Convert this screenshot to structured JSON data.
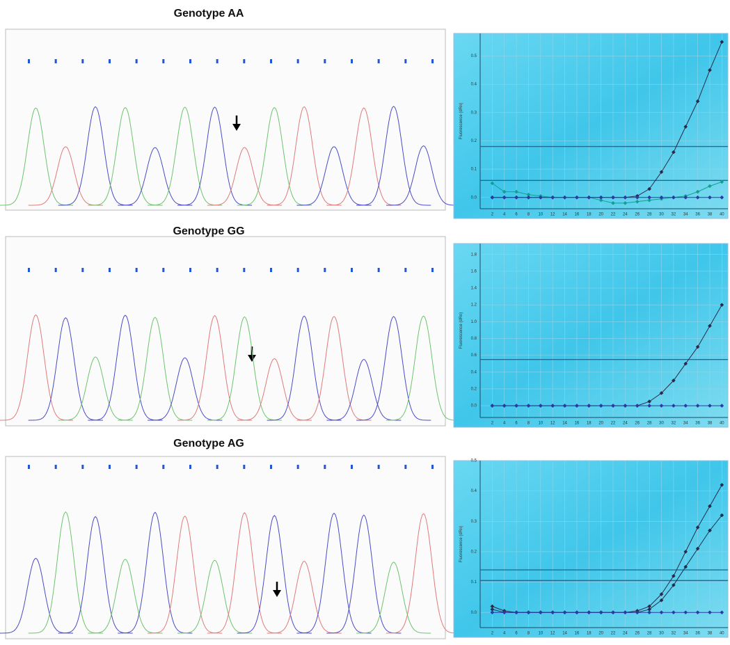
{
  "chart_data": [
    {
      "type": "line",
      "title": "Genotype AA",
      "ylabel": "Fluorescence (dRn)",
      "x": [
        2,
        4,
        6,
        8,
        10,
        12,
        14,
        16,
        18,
        20,
        22,
        24,
        26,
        28,
        30,
        32,
        34,
        36,
        38,
        40
      ],
      "xlim": [
        0,
        41
      ],
      "xticks": [
        2,
        4,
        6,
        8,
        10,
        12,
        14,
        16,
        18,
        20,
        22,
        24,
        26,
        28,
        30,
        32,
        34,
        36,
        38,
        40
      ],
      "ylim": [
        -0.04,
        0.58
      ],
      "yticks": [
        {
          "value": 0,
          "label": "0.0"
        },
        0.1,
        0.2,
        0.3,
        0.4,
        0.5
      ],
      "thresholds": [
        0.18,
        0.06
      ],
      "grid": true,
      "series": [
        {
          "color": "#2a2a4a",
          "values": [
            0,
            0,
            0,
            0,
            0,
            0,
            0,
            0,
            0,
            0,
            0,
            0,
            0.005,
            0.03,
            0.09,
            0.16,
            0.25,
            0.34,
            0.45,
            0.55
          ]
        },
        {
          "color": "#12a090",
          "values": [
            0.05,
            0.02,
            0.02,
            0.01,
            0.005,
            0,
            0,
            0,
            0,
            -0.01,
            -0.02,
            -0.02,
            -0.015,
            -0.01,
            -0.005,
            0,
            0.005,
            0.02,
            0.04,
            0.055
          ]
        },
        {
          "color": "#2a3aa8",
          "values": [
            0,
            0,
            0,
            0,
            0,
            0,
            0,
            0,
            0,
            0,
            0,
            0,
            0,
            0,
            0,
            0,
            0,
            0,
            0,
            0
          ]
        }
      ]
    },
    {
      "type": "line",
      "title": "Genotype GG",
      "ylabel": "Fluorescence (dRn)",
      "x": [
        2,
        4,
        6,
        8,
        10,
        12,
        14,
        16,
        18,
        20,
        22,
        24,
        26,
        28,
        30,
        32,
        34,
        36,
        38,
        40
      ],
      "xlim": [
        0,
        41
      ],
      "xticks": [
        2,
        4,
        6,
        8,
        10,
        12,
        14,
        16,
        18,
        20,
        22,
        24,
        26,
        28,
        30,
        32,
        34,
        36,
        38,
        40
      ],
      "ylim": [
        -0.14,
        1.93
      ],
      "yticks": [
        {
          "value": 0,
          "label": "0.0"
        },
        0.2,
        0.4,
        0.6,
        0.8,
        {
          "value": 1,
          "label": "1.0"
        },
        1.2,
        1.4,
        1.6,
        1.8
      ],
      "thresholds": [
        0.55
      ],
      "grid": true,
      "series": [
        {
          "color": "#2a2a4a",
          "values": [
            0,
            0,
            0,
            0,
            0,
            0,
            0,
            0,
            0,
            0,
            0,
            0,
            0,
            0.05,
            0.15,
            0.3,
            0.5,
            0.7,
            0.95,
            1.2
          ]
        },
        {
          "color": "#2a3aa8",
          "values": [
            0,
            0,
            0,
            0,
            0,
            0,
            0,
            0,
            0,
            0,
            0,
            0,
            0,
            0,
            0,
            0,
            0,
            0,
            0,
            0
          ]
        }
      ]
    },
    {
      "type": "line",
      "title": "Genotype AG",
      "ylabel": "Fluorescence (dRn)",
      "x": [
        2,
        4,
        6,
        8,
        10,
        12,
        14,
        16,
        18,
        20,
        22,
        24,
        26,
        28,
        30,
        32,
        34,
        36,
        38,
        40
      ],
      "xlim": [
        0,
        41
      ],
      "xticks": [
        2,
        4,
        6,
        8,
        10,
        12,
        14,
        16,
        18,
        20,
        22,
        24,
        26,
        28,
        30,
        32,
        34,
        36,
        38,
        40
      ],
      "ylim": [
        -0.05,
        0.5
      ],
      "yticks": [
        {
          "value": 0,
          "label": "0.0"
        },
        0.1,
        0.2,
        0.3,
        0.4,
        0.5
      ],
      "thresholds": [
        0.14,
        0.105
      ],
      "grid": true,
      "series": [
        {
          "color": "#2a2a4a",
          "values": [
            0.02,
            0.005,
            0,
            0,
            0,
            0,
            0,
            0,
            0,
            0,
            0,
            0,
            0.005,
            0.02,
            0.06,
            0.12,
            0.2,
            0.28,
            0.35,
            0.42
          ]
        },
        {
          "color": "#1a3050",
          "values": [
            0.01,
            0,
            0,
            0,
            0,
            0,
            0,
            0,
            0,
            0,
            0,
            0,
            0,
            0.01,
            0.04,
            0.09,
            0.15,
            0.21,
            0.27,
            0.32
          ]
        },
        {
          "color": "#2a3aa8",
          "values": [
            0,
            0,
            0,
            0,
            0,
            0,
            0,
            0,
            0,
            0,
            0,
            0,
            0,
            0,
            0,
            0,
            0,
            0,
            0,
            0
          ]
        }
      ]
    }
  ]
}
